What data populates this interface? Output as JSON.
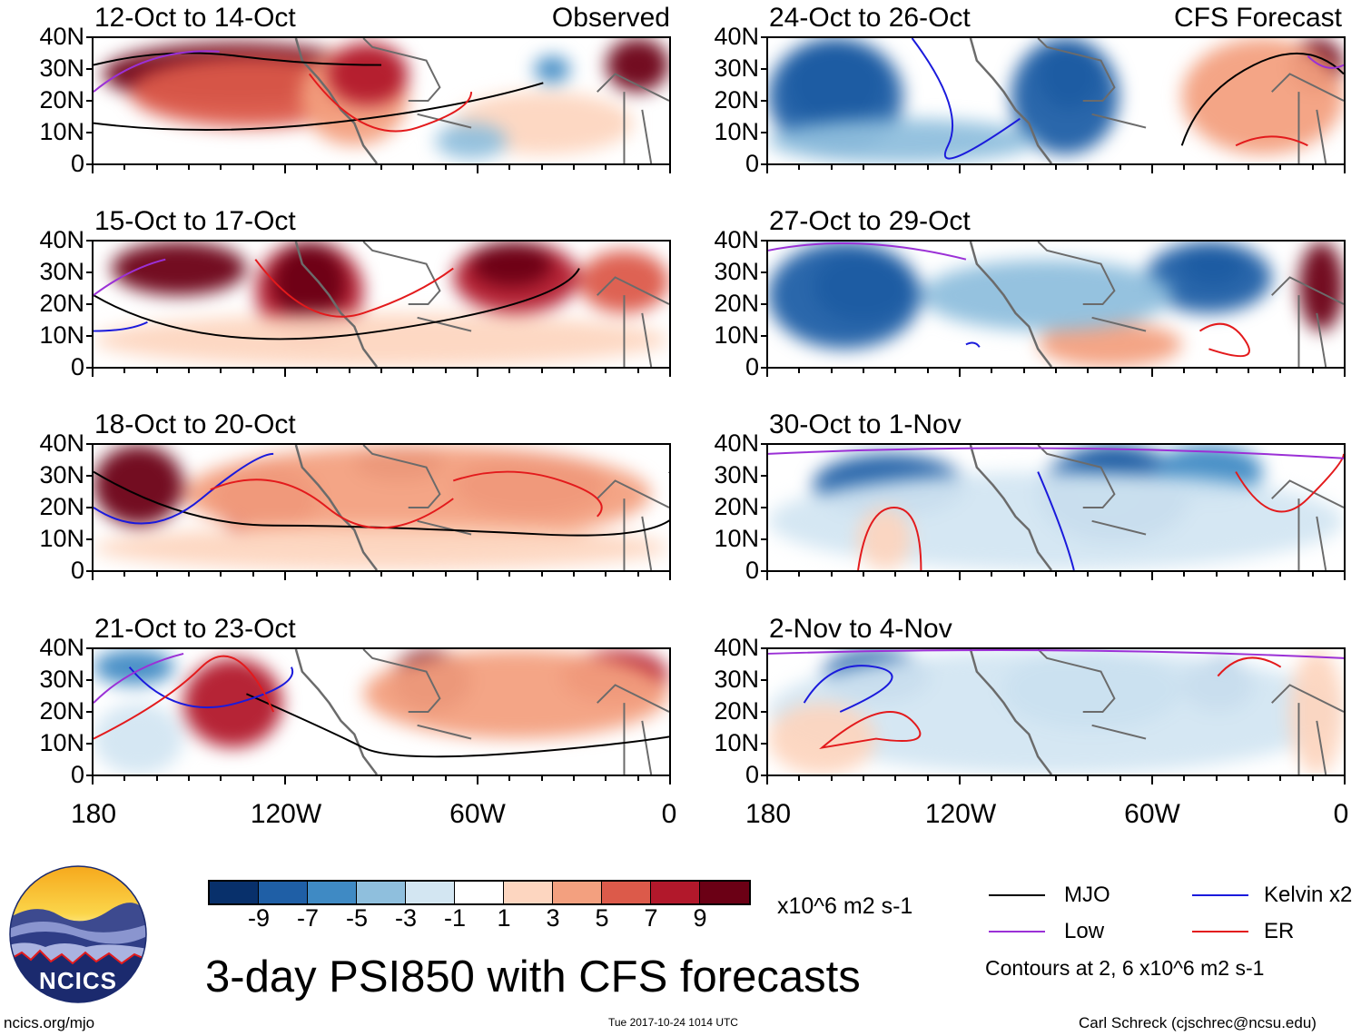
{
  "title": "3-day PSI850 with CFS forecasts",
  "observed_label": "Observed",
  "forecast_label": "CFS Forecast",
  "panels_left": [
    {
      "title": "12-Oct to 14-Oct"
    },
    {
      "title": "15-Oct to 17-Oct"
    },
    {
      "title": "18-Oct to 20-Oct"
    },
    {
      "title": "21-Oct to 23-Oct"
    }
  ],
  "panels_right": [
    {
      "title": "24-Oct to 26-Oct"
    },
    {
      "title": "27-Oct to 29-Oct"
    },
    {
      "title": "30-Oct to 1-Nov"
    },
    {
      "title": "2-Nov to 4-Nov"
    }
  ],
  "y_labels": [
    "40N",
    "30N",
    "20N",
    "10N",
    "0"
  ],
  "x_labels": [
    "180",
    "120W",
    "60W",
    "0"
  ],
  "colorbar": {
    "colors": [
      "#08306b",
      "#1f5fa6",
      "#3f8ac4",
      "#8fbfdd",
      "#d3e6f2",
      "#ffffff",
      "#fdd6c0",
      "#f3a07f",
      "#dc5a4a",
      "#b2182b",
      "#6b0015"
    ],
    "labels": [
      "-9",
      "-7",
      "-5",
      "-3",
      "-1",
      "1",
      "3",
      "5",
      "7",
      "9"
    ],
    "units": "x10^6 m2 s-1"
  },
  "legend": {
    "items": [
      {
        "label": "MJO",
        "color": "#000000"
      },
      {
        "label": "Kelvin x2",
        "color": "#1a1adc"
      },
      {
        "label": "Low",
        "color": "#9b30d6"
      },
      {
        "label": "ER",
        "color": "#e31a1c"
      }
    ],
    "note": "Contours at 2, 6 x10^6 m2 s-1"
  },
  "logo_text": "NCICS",
  "footer": {
    "left": "ncics.org/mjo",
    "center": "Tue 2017-10-24 1014 UTC",
    "right": "Carl Schreck (cjschrec@ncsu.edu)"
  }
}
